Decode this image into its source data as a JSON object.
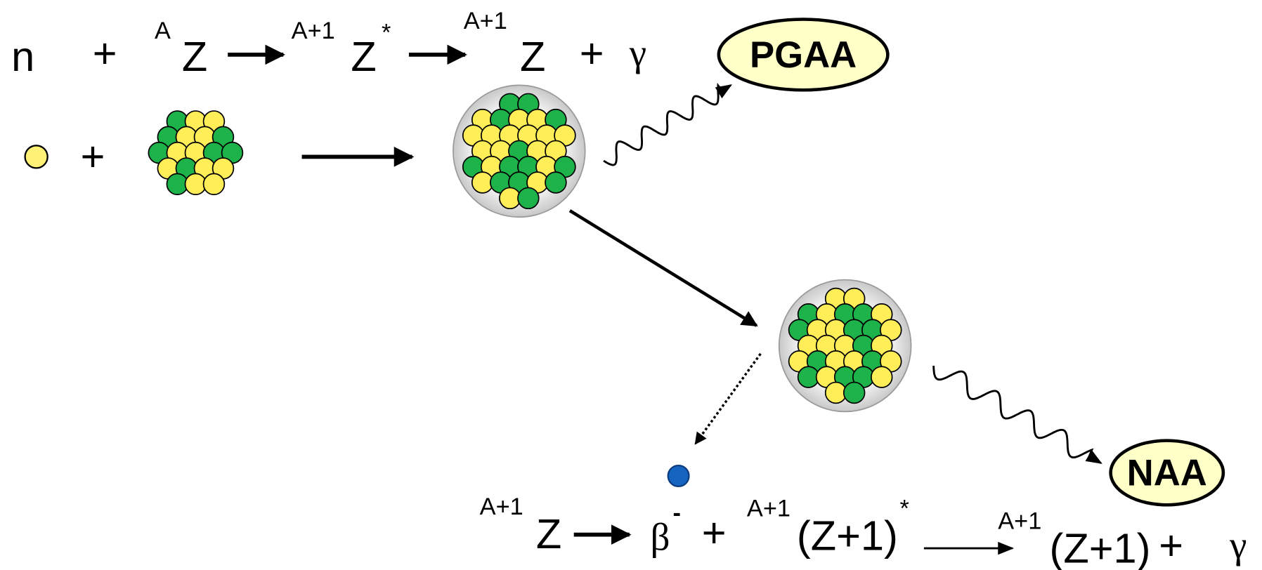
{
  "top_equation": [
    "n",
    "+",
    "A",
    "Z",
    "A+1",
    "Z",
    "*",
    "A+1",
    "Z",
    "+",
    "γ"
  ],
  "particle_row": [
    "+"
  ],
  "labels": {
    "pgaa": "PGAA",
    "naa": "NAA"
  },
  "bottom_equation": [
    "A+1",
    "Z",
    "β",
    "-",
    "+",
    "A+1",
    "(Z+1)",
    "*",
    "A+1",
    "(Z+1)",
    "+",
    "γ"
  ]
}
